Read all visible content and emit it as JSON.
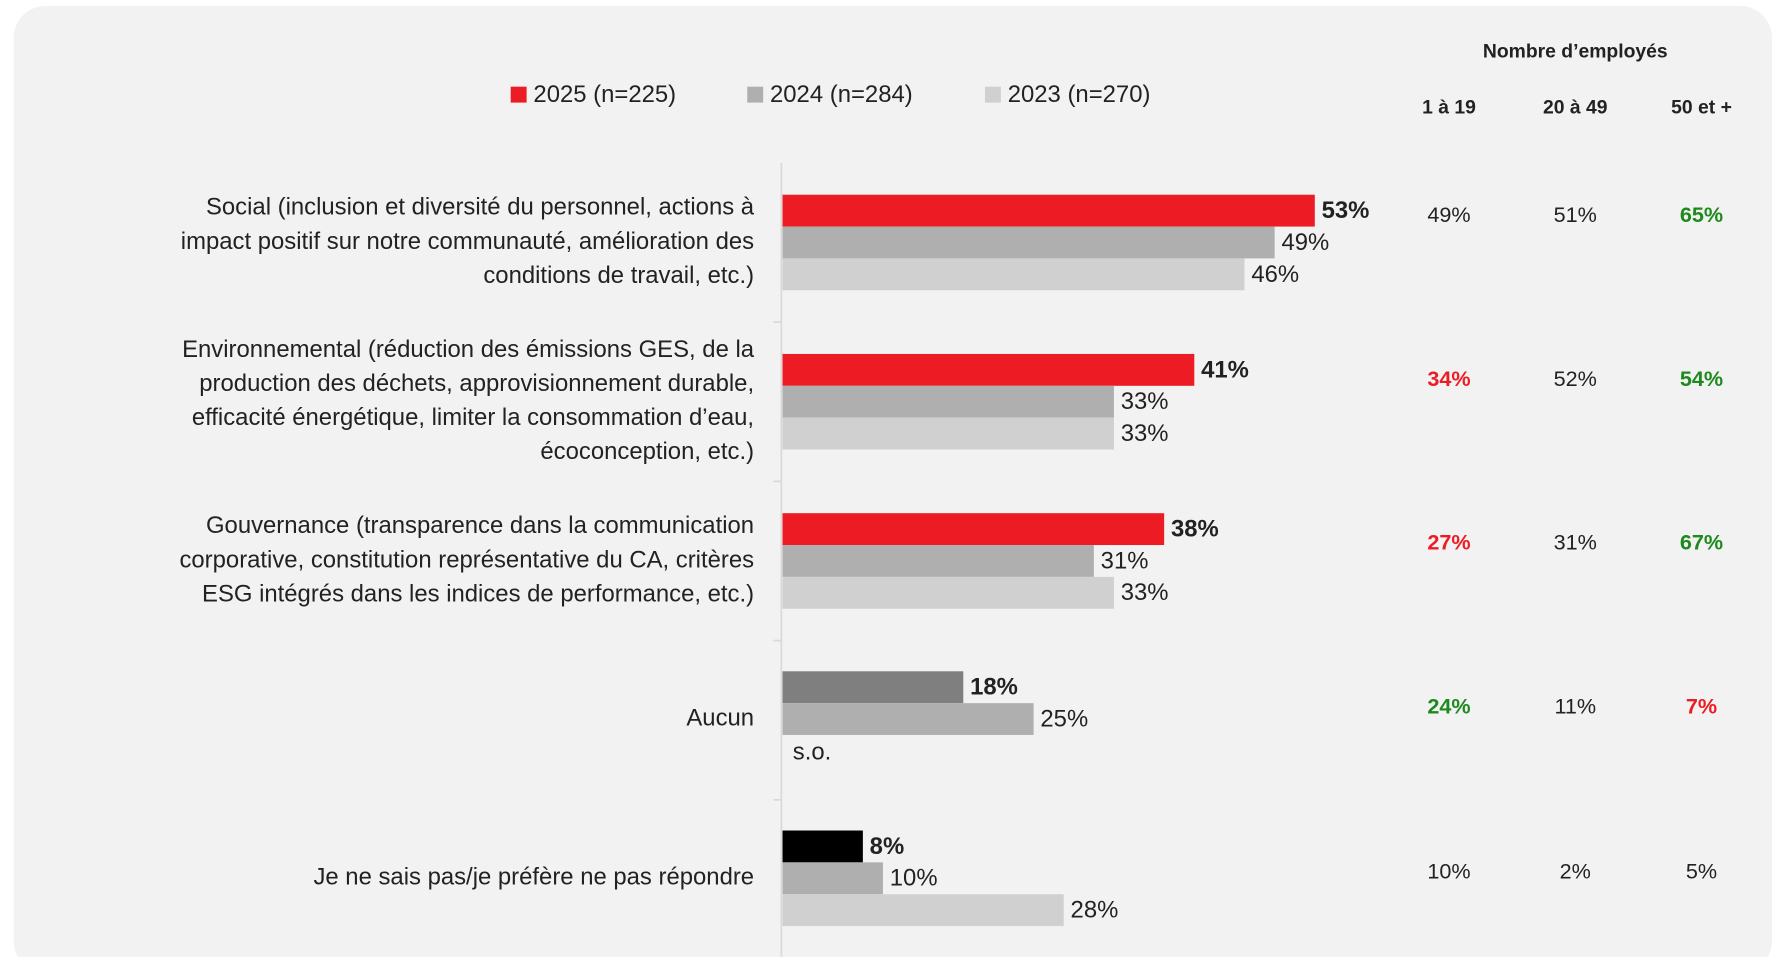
{
  "chart_data": {
    "type": "bar",
    "orientation": "horizontal",
    "categories": [
      [
        "Social (inclusion et diversité du personnel, actions à",
        "impact positif sur notre communauté, amélioration des",
        "conditions de travail, etc.)"
      ],
      [
        "Environnemental (réduction des émissions GES, de la",
        "production des déchets, approvisionnement durable,",
        "efficacité énergétique, limiter la consommation d’eau,",
        "écoconception, etc.)"
      ],
      [
        "Gouvernance (transparence dans la communication",
        "corporative, constitution représentative du CA, critères",
        "ESG intégrés dans les indices de performance, etc.)"
      ],
      [
        "Aucun"
      ],
      [
        "Je ne sais pas/je préfère ne pas répondre"
      ]
    ],
    "series": [
      {
        "name": "2025 (n=225)",
        "color": "#ed1c24",
        "colors": [
          "#ed1c24",
          "#ed1c24",
          "#ed1c24",
          "#7f7f7f",
          "#000000"
        ],
        "bold": true,
        "values": [
          53,
          41,
          38,
          18,
          8
        ],
        "value_labels": [
          "53%",
          "41%",
          "38%",
          "18%",
          "8%"
        ]
      },
      {
        "name": "2024 (n=284)",
        "color": "#afafaf",
        "values": [
          49,
          33,
          31,
          25,
          10
        ],
        "value_labels": [
          "49%",
          "33%",
          "31%",
          "25%",
          "10%"
        ]
      },
      {
        "name": "2023 (n=270)",
        "color": "#d0d0d0",
        "values": [
          46,
          33,
          33,
          null,
          28
        ],
        "value_labels": [
          "46%",
          "33%",
          "33%",
          "s.o.",
          "28%"
        ]
      }
    ],
    "table": {
      "title": "Nombre d’employés",
      "columns": [
        "1 à 19",
        "20 à 49",
        "50 et +"
      ],
      "rows": [
        [
          {
            "text": "49%",
            "color": "#222222"
          },
          {
            "text": "51%",
            "color": "#222222"
          },
          {
            "text": "65%",
            "color": "#1e8a1e"
          }
        ],
        [
          {
            "text": "34%",
            "color": "#ed1c24"
          },
          {
            "text": "52%",
            "color": "#222222"
          },
          {
            "text": "54%",
            "color": "#1e8a1e"
          }
        ],
        [
          {
            "text": "27%",
            "color": "#ed1c24"
          },
          {
            "text": "31%",
            "color": "#222222"
          },
          {
            "text": "67%",
            "color": "#1e8a1e"
          }
        ],
        [
          {
            "text": "24%",
            "color": "#1e8a1e"
          },
          {
            "text": "11%",
            "color": "#222222"
          },
          {
            "text": "7%",
            "color": "#ed1c24"
          }
        ],
        [
          {
            "text": "10%",
            "color": "#222222"
          },
          {
            "text": "2%",
            "color": "#222222"
          },
          {
            "text": "5%",
            "color": "#222222"
          }
        ]
      ]
    }
  }
}
